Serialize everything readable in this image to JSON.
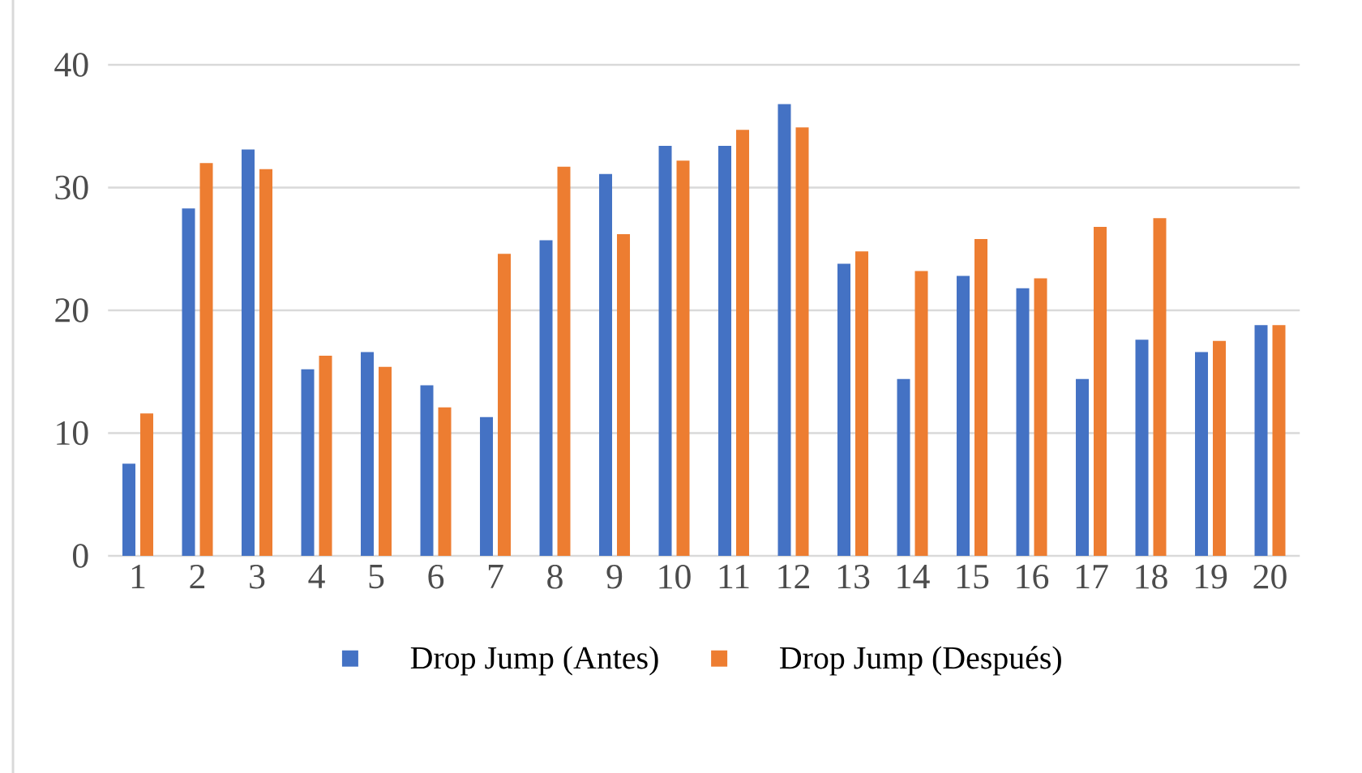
{
  "chart_data": {
    "type": "bar",
    "categories": [
      "1",
      "2",
      "3",
      "4",
      "5",
      "6",
      "7",
      "8",
      "9",
      "10",
      "11",
      "12",
      "13",
      "14",
      "15",
      "16",
      "17",
      "18",
      "19",
      "20"
    ],
    "series": [
      {
        "name": "Drop Jump (Antes)",
        "color": "#4472c4",
        "values": [
          7.5,
          28.3,
          33.1,
          15.2,
          16.6,
          13.9,
          11.3,
          25.7,
          31.1,
          33.4,
          33.4,
          36.8,
          23.8,
          14.4,
          22.8,
          21.8,
          14.4,
          17.6,
          16.6,
          18.8
        ]
      },
      {
        "name": "Drop Jump (Después)",
        "color": "#ed7d31",
        "values": [
          11.6,
          32.0,
          31.5,
          16.3,
          15.4,
          12.1,
          24.6,
          31.7,
          26.2,
          32.2,
          34.7,
          34.9,
          24.8,
          23.2,
          25.8,
          22.6,
          26.8,
          27.5,
          17.5,
          18.8
        ]
      }
    ],
    "ylim": [
      0,
      40
    ],
    "yticks": [
      0,
      10,
      20,
      30,
      40
    ],
    "grid": "y",
    "legend": "bottom"
  }
}
